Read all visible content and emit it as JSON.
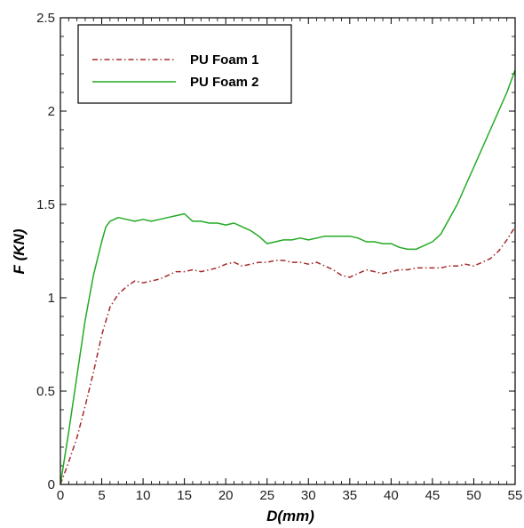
{
  "chart_data": {
    "type": "line",
    "title": "",
    "xlabel": "D(mm)",
    "ylabel": "F (KN)",
    "xlim": [
      0,
      55
    ],
    "ylim": [
      0,
      2.5
    ],
    "xticks": [
      0,
      5,
      10,
      15,
      20,
      25,
      30,
      35,
      40,
      45,
      50,
      55
    ],
    "yticks": [
      0,
      0.5,
      1,
      1.5,
      2,
      2.5
    ],
    "ytick_labels": [
      "0",
      "0.5",
      "1",
      "1.5",
      "2",
      "2.5"
    ],
    "grid": false,
    "legend_position": "top-left",
    "series": [
      {
        "name": "PU Foam 1",
        "color": "#a52a2a",
        "line_style": "dash-dot",
        "x": [
          0,
          1,
          2,
          3,
          4,
          5,
          6,
          7,
          8,
          9,
          10,
          11,
          12,
          13,
          14,
          15,
          16,
          17,
          18,
          19,
          20,
          21,
          22,
          23,
          24,
          25,
          26,
          27,
          28,
          29,
          30,
          31,
          32,
          33,
          34,
          35,
          36,
          37,
          38,
          39,
          40,
          41,
          42,
          43,
          44,
          45,
          46,
          47,
          48,
          49,
          50,
          51,
          52,
          53,
          54,
          55
        ],
        "y": [
          0,
          0.12,
          0.25,
          0.42,
          0.6,
          0.8,
          0.95,
          1.02,
          1.06,
          1.09,
          1.08,
          1.09,
          1.1,
          1.12,
          1.14,
          1.14,
          1.15,
          1.14,
          1.15,
          1.16,
          1.18,
          1.19,
          1.17,
          1.18,
          1.19,
          1.19,
          1.2,
          1.2,
          1.19,
          1.19,
          1.18,
          1.19,
          1.17,
          1.15,
          1.12,
          1.11,
          1.13,
          1.15,
          1.14,
          1.13,
          1.14,
          1.15,
          1.15,
          1.16,
          1.16,
          1.16,
          1.16,
          1.17,
          1.17,
          1.18,
          1.17,
          1.19,
          1.21,
          1.25,
          1.31,
          1.38
        ]
      },
      {
        "name": "PU Foam 2",
        "color": "#22aa22",
        "line_style": "solid",
        "x": [
          0,
          1,
          2,
          3,
          4,
          5,
          5.5,
          6,
          7,
          8,
          9,
          10,
          11,
          12,
          13,
          14,
          15,
          16,
          17,
          18,
          19,
          20,
          21,
          22,
          23,
          24,
          25,
          26,
          27,
          28,
          29,
          30,
          31,
          32,
          33,
          34,
          35,
          36,
          37,
          38,
          39,
          40,
          41,
          42,
          43,
          44,
          45,
          46,
          47,
          48,
          49,
          50,
          51,
          52,
          53,
          54,
          55
        ],
        "y": [
          0,
          0.28,
          0.58,
          0.88,
          1.12,
          1.3,
          1.38,
          1.41,
          1.43,
          1.42,
          1.41,
          1.42,
          1.41,
          1.42,
          1.43,
          1.44,
          1.45,
          1.41,
          1.41,
          1.4,
          1.4,
          1.39,
          1.4,
          1.38,
          1.36,
          1.33,
          1.29,
          1.3,
          1.31,
          1.31,
          1.32,
          1.31,
          1.32,
          1.33,
          1.33,
          1.33,
          1.33,
          1.32,
          1.3,
          1.3,
          1.29,
          1.29,
          1.27,
          1.26,
          1.26,
          1.28,
          1.3,
          1.34,
          1.42,
          1.5,
          1.6,
          1.7,
          1.8,
          1.9,
          2.0,
          2.1,
          2.22
        ]
      }
    ]
  }
}
